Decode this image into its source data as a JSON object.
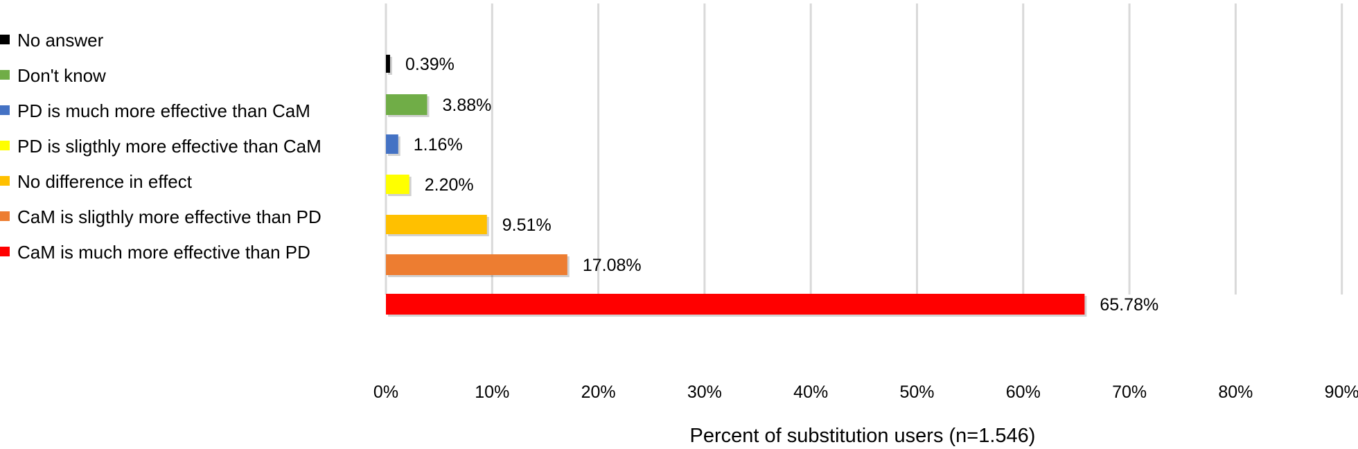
{
  "chart_data": {
    "type": "bar",
    "orientation": "horizontal",
    "categories": [
      "No answer",
      "Don't know",
      "PD is much more effective than CaM",
      "PD is sligthly more effective than CaM",
      "No difference in effect",
      "CaM is sligthly more effective than PD",
      "CaM is much more effective than PD"
    ],
    "values": [
      0.39,
      3.88,
      1.16,
      2.2,
      9.51,
      17.08,
      65.78
    ],
    "value_labels": [
      "0.39%",
      "3.88%",
      "1.16%",
      "2.20%",
      "9.51%",
      "17.08%",
      "65.78%"
    ],
    "colors": [
      "#000000",
      "#70ad47",
      "#4472c4",
      "#ffff00",
      "#ffc000",
      "#ed7d31",
      "#ff0000"
    ],
    "xlabel": "Percent of substitution users (n=1.546)",
    "ylabel": "",
    "xlim": [
      0,
      90
    ],
    "xticks": [
      0,
      10,
      20,
      30,
      40,
      50,
      60,
      70,
      80,
      90
    ],
    "xtick_labels": [
      "0%",
      "10%",
      "20%",
      "30%",
      "40%",
      "50%",
      "60%",
      "70%",
      "80%",
      "90%"
    ],
    "grid": "vertical",
    "legend_position": "left"
  }
}
